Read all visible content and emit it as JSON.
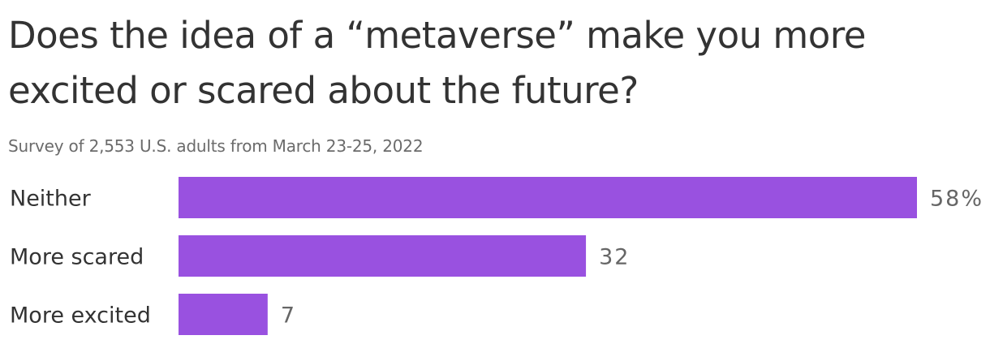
{
  "chart_data": {
    "type": "bar",
    "orientation": "horizontal",
    "title": "Does the idea of a “metaverse” make you more excited or scared about the future?",
    "subtitle": "Survey of 2,553 U.S. adults from March 23-25, 2022",
    "categories": [
      "Neither",
      "More scared",
      "More excited"
    ],
    "values": [
      58,
      32,
      7
    ],
    "value_labels": [
      "58%",
      "32",
      "7"
    ],
    "xlim": [
      0,
      58
    ],
    "grid": false,
    "legend": "none",
    "bar_color": "#9951e0"
  }
}
